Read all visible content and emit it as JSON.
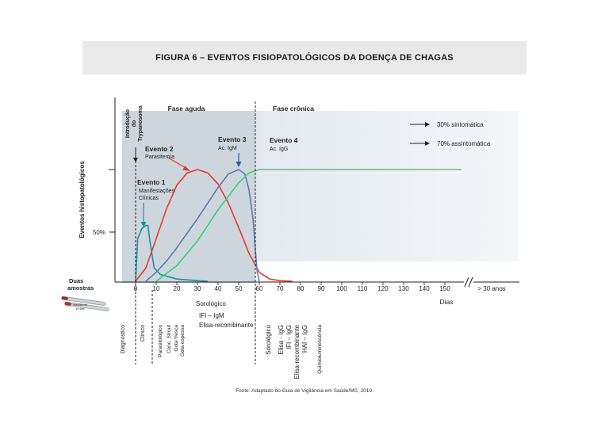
{
  "title": "FIGURA 6 – EVENTOS FISIOPATOLÓGICOS DA DOENÇA DE CHAGAS",
  "footer": "Fonte: Adaptado do Guia de Vigilância em Saúde/MS, 2019.",
  "colors": {
    "red": "#e8392b",
    "blue": "#5f79ad",
    "green": "#3ccf72",
    "teal": "#1e8f99",
    "acute_shade": "#cdd6dd",
    "chronic_shade": "#eef2f6"
  },
  "chart_data": {
    "type": "line",
    "ylabel": "Eventos histopatológicos",
    "y_tick": "50%",
    "xlabel": "Dias",
    "x_ticks": [
      "0",
      "10",
      "20",
      "30",
      "40",
      "50",
      "60",
      "70",
      "80",
      "90",
      "100",
      "110",
      "120",
      "130",
      "140",
      "150",
      "> 30 anos"
    ],
    "phases": {
      "acute": "Fase aguda",
      "chronic": "Fase crônica"
    },
    "introduction_label": [
      "Introdução",
      "do",
      "Trypanosoma"
    ],
    "events": [
      {
        "title": "Evento 1",
        "sub": [
          "Manifestações",
          "Clínicas"
        ]
      },
      {
        "title": "Evento 2",
        "sub": [
          "Parasitemia"
        ]
      },
      {
        "title": "Evento 3",
        "sub": [
          "Ac. IgM"
        ]
      },
      {
        "title": "Evento 4",
        "sub": [
          "Ac. IgG"
        ]
      }
    ],
    "outcomes": [
      "30% sintomática",
      "70% assintomática"
    ],
    "samples_label": [
      "Duas",
      "amostras"
    ],
    "tube_label": [
      "Intervalo de",
      "15 dias"
    ],
    "sorology_label": [
      "Sorológico",
      "IFI – IgM",
      "Elisa-recombinante"
    ],
    "diagnosis_labels": [
      "Diagnóstico",
      "Clínico",
      "Parasitológico",
      "Conc. Strout",
      "Gota fresca",
      "Gota espessa"
    ],
    "chronic_labels": [
      "Sorológico",
      "Elisa - IgG",
      "IFI – IgG",
      "Elisa-recombinante",
      "HAI – IgG",
      "Quimioluminescência"
    ],
    "series": [
      {
        "name": "Manifestações Clínicas",
        "color": "teal",
        "points": [
          [
            0,
            0
          ],
          [
            1,
            0.38
          ],
          [
            3,
            0.47
          ],
          [
            5,
            0.5
          ],
          [
            6,
            0.5
          ],
          [
            7,
            0.35
          ],
          [
            9,
            0.12
          ],
          [
            12,
            0.06
          ],
          [
            20,
            0.02
          ],
          [
            30,
            0.005
          ],
          [
            35,
            0
          ]
        ]
      },
      {
        "name": "Parasitemia",
        "color": "red",
        "points": [
          [
            0,
            0
          ],
          [
            5,
            0.12
          ],
          [
            10,
            0.38
          ],
          [
            15,
            0.65
          ],
          [
            20,
            0.86
          ],
          [
            25,
            0.97
          ],
          [
            30,
            1.0
          ],
          [
            35,
            0.97
          ],
          [
            40,
            0.87
          ],
          [
            45,
            0.7
          ],
          [
            50,
            0.48
          ],
          [
            55,
            0.25
          ],
          [
            60,
            0.08
          ],
          [
            65,
            0.02
          ],
          [
            70,
            0.005
          ],
          [
            76,
            0
          ]
        ]
      },
      {
        "name": "Ac. IgM",
        "color": "blue",
        "points": [
          [
            5,
            0
          ],
          [
            10,
            0.08
          ],
          [
            15,
            0.18
          ],
          [
            20,
            0.3
          ],
          [
            25,
            0.43
          ],
          [
            30,
            0.56
          ],
          [
            35,
            0.7
          ],
          [
            40,
            0.84
          ],
          [
            45,
            0.96
          ],
          [
            50,
            1.0
          ],
          [
            53,
            0.96
          ],
          [
            55,
            0.82
          ],
          [
            57,
            0.55
          ],
          [
            58,
            0.3
          ],
          [
            59,
            0.08
          ],
          [
            60,
            0
          ]
        ]
      },
      {
        "name": "Ac. IgG",
        "color": "green",
        "points": [
          [
            10,
            0
          ],
          [
            20,
            0.14
          ],
          [
            30,
            0.36
          ],
          [
            40,
            0.64
          ],
          [
            50,
            0.88
          ],
          [
            55,
            0.97
          ],
          [
            60,
            1.0
          ],
          [
            150,
            1.0
          ],
          [
            158,
            1.0
          ]
        ]
      }
    ]
  }
}
